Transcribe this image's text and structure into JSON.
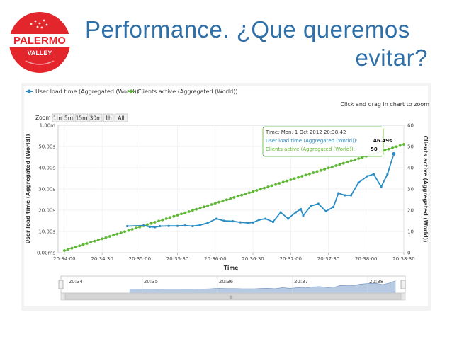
{
  "slide": {
    "title_line1": "Performance. ¿Que queremos",
    "title_line2": "evitar?",
    "logo_line1": "PALERMO",
    "logo_line2": "VALLEY"
  },
  "colors": {
    "title": "#2e6fa8",
    "logo_red": "#e2262b",
    "series_load": "#2a8dc5",
    "series_clients": "#5cb832"
  },
  "chart": {
    "hint": "Click and drag in chart to zoom",
    "zoom_label": "Zoom",
    "zoom_buttons": [
      "1m",
      "5m",
      "15m",
      "30m",
      "1h",
      "All"
    ],
    "tooltip": {
      "time": "Time: Mon, 1 Oct 2012 20:38:42",
      "load_label": "User load time (Aggregated (World)):",
      "load_value": "46.49s",
      "clients_label": "Clients active (Aggregated (World)):",
      "clients_value": "50"
    },
    "navigator_labels": [
      "20:34",
      "20:35",
      "20:36",
      "20:37",
      "20:38"
    ],
    "navigator_handle": "III"
  },
  "chart_data": {
    "type": "line",
    "xlabel": "Time",
    "ylabel": "User load time (Aggregated (World))",
    "y2label": "Clients active (Aggregated (World))",
    "x_ticks": [
      "20:34:00",
      "20:34:30",
      "20:35:00",
      "20:35:30",
      "20:36:00",
      "20:36:30",
      "20:37:00",
      "20:37:30",
      "20:38:00",
      "20:38:30"
    ],
    "y_ticks": [
      "0.00ms",
      "10.00s",
      "20.00s",
      "30.00s",
      "40.00s",
      "50.00s",
      "1.00m"
    ],
    "y2_ticks": [
      "0",
      "10",
      "20",
      "30",
      "40",
      "50",
      "60"
    ],
    "xlim_seconds_from_2033": [
      -5,
      270
    ],
    "ylim": [
      0,
      60
    ],
    "y2lim": [
      0,
      60
    ],
    "legend_position": "top-left",
    "series": [
      {
        "name": "User load time (Aggregated (World))",
        "axis": "left",
        "unit": "s",
        "x_seconds_from_2033": [
          50,
          63,
          68,
          72,
          76,
          83,
          90,
          96,
          102,
          108,
          114,
          121,
          127,
          134,
          140,
          146,
          150,
          155,
          160,
          166,
          172,
          178,
          184,
          188,
          190,
          196,
          202,
          208,
          214,
          218,
          223,
          228,
          234,
          241,
          246,
          252,
          257,
          262
        ],
        "values": [
          12.5,
          12.8,
          12.2,
          12.0,
          12.5,
          12.6,
          12.6,
          12.8,
          12.5,
          13.0,
          14.0,
          16.0,
          15.0,
          14.8,
          14.3,
          14.0,
          14.2,
          15.5,
          16.0,
          14.5,
          19.0,
          16.0,
          19.0,
          20.5,
          17.5,
          22.0,
          23.0,
          19.5,
          21.5,
          28.0,
          27.0,
          27.0,
          33.0,
          36.0,
          37.0,
          31.0,
          37.0,
          46.49
        ]
      },
      {
        "name": "Clients active (Aggregated (World))",
        "axis": "right",
        "unit": "count",
        "x_seconds_from_2033": [
          0,
          270
        ],
        "values": [
          1,
          51
        ]
      }
    ]
  }
}
